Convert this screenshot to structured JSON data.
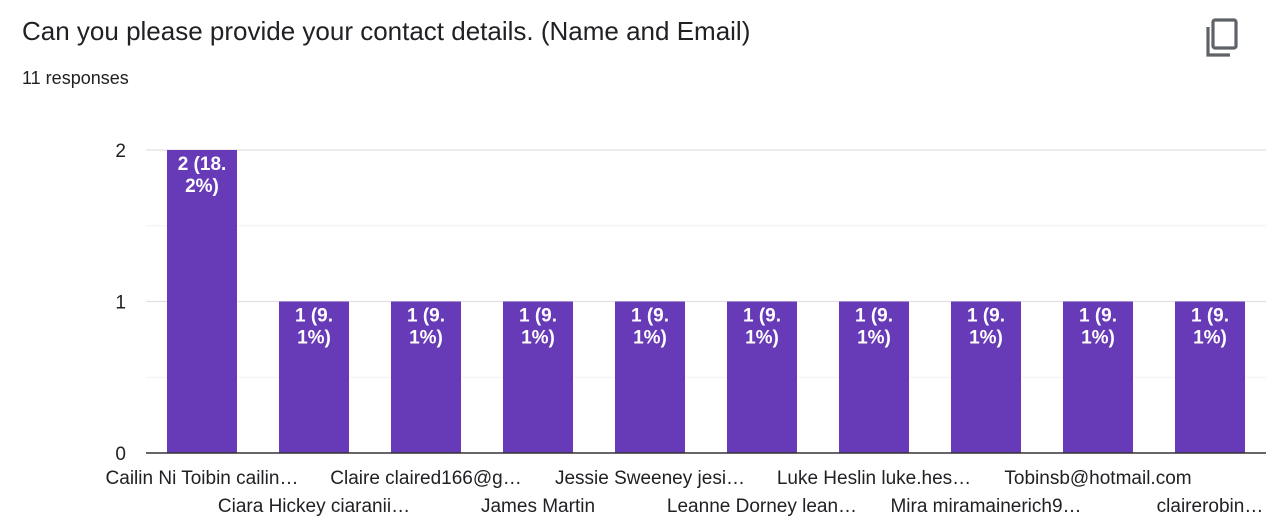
{
  "question": {
    "title": "Can you please provide your contact details. (Name and Email)",
    "responses_label": "11 responses"
  },
  "toolbar": {
    "copy_icon": "copy-icon"
  },
  "colors": {
    "bar": "#673ab7",
    "bar_label": "#ffffff",
    "grid": "#e8e8e8",
    "axis": "#333333",
    "text": "#202124"
  },
  "chart_data": {
    "type": "bar",
    "title": "",
    "xlabel": "",
    "ylabel": "",
    "ylim": [
      0,
      2
    ],
    "yticks": [
      "0",
      "1",
      "2"
    ],
    "grid": true,
    "categories": [
      "Cailin Ni Toibin cailin…",
      "Ciara Hickey ciaranii…",
      "Claire claired166@g…",
      "James Martin",
      "Jessie Sweeney jesi…",
      "Leanne Dorney lean…",
      "Luke Heslin luke.hes…",
      "Mira miramainerich9…",
      "Tobinsb@hotmail.com",
      "clairerobin…"
    ],
    "values": [
      2,
      1,
      1,
      1,
      1,
      1,
      1,
      1,
      1,
      1
    ],
    "data_labels": [
      [
        "2 (18.",
        "2%)"
      ],
      [
        "1 (9.",
        "1%)"
      ],
      [
        "1 (9.",
        "1%)"
      ],
      [
        "1 (9.",
        "1%)"
      ],
      [
        "1 (9.",
        "1%)"
      ],
      [
        "1 (9.",
        "1%)"
      ],
      [
        "1 (9.",
        "1%)"
      ],
      [
        "1 (9.",
        "1%)"
      ],
      [
        "1 (9.",
        "1%)"
      ],
      [
        "1 (9.",
        "1%)"
      ]
    ]
  }
}
